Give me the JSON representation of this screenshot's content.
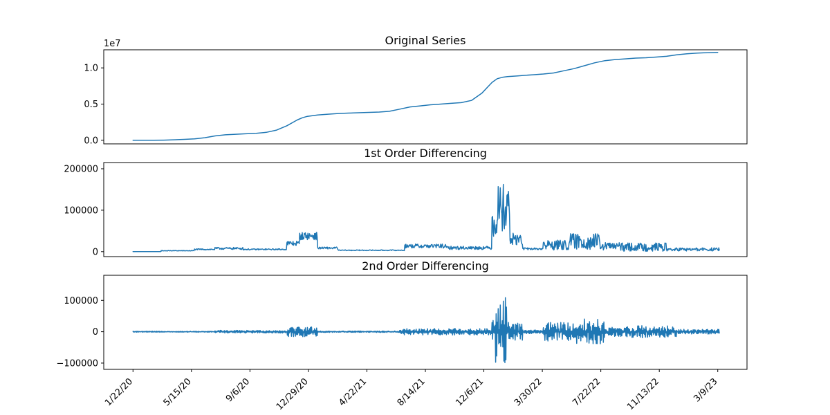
{
  "chart_data": [
    {
      "type": "line",
      "title": "Original Series",
      "scale_label": "1e7",
      "yticks": [
        0.0,
        0.5,
        1.0
      ],
      "ytick_labels": [
        "0.0",
        "0.5",
        "1.0"
      ],
      "ylim": [
        -0.05,
        1.25
      ],
      "show_xticks": false,
      "series": [
        {
          "color": "#1f77b4",
          "x": [
            0,
            20,
            40,
            60,
            80,
            100,
            120,
            140,
            160,
            180,
            200,
            220,
            240,
            260,
            280,
            300,
            320,
            330,
            340,
            350,
            360,
            380,
            400,
            420,
            440,
            460,
            480,
            500,
            520,
            540,
            560,
            580,
            600,
            620,
            640,
            660,
            680,
            700,
            710,
            720,
            730,
            740,
            750,
            760,
            780,
            800,
            820,
            840,
            860,
            880,
            900,
            920,
            940,
            960,
            980,
            1000,
            1020,
            1040,
            1060,
            1080,
            1100,
            1120,
            1140
          ],
          "y": [
            0.0,
            0.0,
            0.0,
            0.002,
            0.006,
            0.012,
            0.02,
            0.035,
            0.06,
            0.075,
            0.083,
            0.09,
            0.095,
            0.11,
            0.14,
            0.2,
            0.28,
            0.31,
            0.33,
            0.34,
            0.35,
            0.36,
            0.37,
            0.375,
            0.38,
            0.385,
            0.39,
            0.4,
            0.43,
            0.46,
            0.475,
            0.49,
            0.5,
            0.51,
            0.52,
            0.55,
            0.65,
            0.8,
            0.85,
            0.87,
            0.88,
            0.885,
            0.89,
            0.895,
            0.905,
            0.915,
            0.93,
            0.96,
            0.99,
            1.03,
            1.07,
            1.1,
            1.115,
            1.125,
            1.135,
            1.14,
            1.15,
            1.16,
            1.18,
            1.195,
            1.205,
            1.21,
            1.215
          ]
        }
      ],
      "xlim": [
        -57,
        1197
      ]
    },
    {
      "type": "line",
      "title": "1st Order Differencing",
      "yticks": [
        0,
        100000,
        200000
      ],
      "ytick_labels": [
        "0",
        "100000",
        "200000"
      ],
      "ylim": [
        -12000,
        215000
      ],
      "show_xticks": false,
      "xlim": [
        -57,
        1197
      ],
      "segments": [
        {
          "start": 0,
          "end": 55,
          "base": 0,
          "amp": 300
        },
        {
          "start": 55,
          "end": 120,
          "base": 2000,
          "amp": 1500
        },
        {
          "start": 120,
          "end": 160,
          "base": 5000,
          "amp": 3000
        },
        {
          "start": 160,
          "end": 215,
          "base": 7000,
          "amp": 5000
        },
        {
          "start": 215,
          "end": 300,
          "base": 5000,
          "amp": 3000
        },
        {
          "start": 300,
          "end": 325,
          "base": 18000,
          "amp": 12000
        },
        {
          "start": 325,
          "end": 360,
          "base": 35000,
          "amp": 18000
        },
        {
          "start": 360,
          "end": 400,
          "base": 8000,
          "amp": 5000
        },
        {
          "start": 400,
          "end": 530,
          "base": 3000,
          "amp": 2000
        },
        {
          "start": 530,
          "end": 610,
          "base": 12000,
          "amp": 10000
        },
        {
          "start": 610,
          "end": 700,
          "base": 8000,
          "amp": 8000
        },
        {
          "start": 700,
          "end": 710,
          "base": 60000,
          "amp": 80000
        },
        {
          "start": 710,
          "end": 735,
          "base": 90000,
          "amp": 115000
        },
        {
          "start": 735,
          "end": 760,
          "base": 25000,
          "amp": 30000
        },
        {
          "start": 760,
          "end": 800,
          "base": 6000,
          "amp": 5000
        },
        {
          "start": 800,
          "end": 850,
          "base": 12000,
          "amp": 25000
        },
        {
          "start": 850,
          "end": 910,
          "base": 18000,
          "amp": 40000
        },
        {
          "start": 910,
          "end": 950,
          "base": 10000,
          "amp": 20000
        },
        {
          "start": 950,
          "end": 1040,
          "base": 8000,
          "amp": 20000
        },
        {
          "start": 1040,
          "end": 1144,
          "base": 4000,
          "amp": 8000
        }
      ]
    },
    {
      "type": "line",
      "title": "2nd Order Differencing",
      "yticks": [
        -100000,
        0,
        100000
      ],
      "ytick_labels": [
        "−100000",
        "0",
        "100000"
      ],
      "ylim": [
        -120000,
        180000
      ],
      "show_xticks": true,
      "xlim": [
        -57,
        1197
      ],
      "xticks": [
        0,
        114,
        228,
        342,
        456,
        570,
        684,
        798,
        912,
        1026,
        1140
      ],
      "xtick_labels": [
        "1/22/20",
        "5/15/20",
        "9/6/20",
        "12/29/20",
        "4/22/21",
        "8/14/21",
        "12/6/21",
        "3/30/22",
        "7/22/22",
        "11/13/22",
        "3/9/23"
      ],
      "segments": [
        {
          "start": 0,
          "end": 160,
          "base": 0,
          "amp": 2000
        },
        {
          "start": 160,
          "end": 300,
          "base": 0,
          "amp": 6000
        },
        {
          "start": 300,
          "end": 360,
          "base": 0,
          "amp": 22000
        },
        {
          "start": 360,
          "end": 520,
          "base": 0,
          "amp": 3000
        },
        {
          "start": 520,
          "end": 700,
          "base": 0,
          "amp": 14000
        },
        {
          "start": 700,
          "end": 705,
          "base": 0,
          "amp": 50000
        },
        {
          "start": 705,
          "end": 730,
          "base": 0,
          "amp": 150000
        },
        {
          "start": 730,
          "end": 760,
          "base": 0,
          "amp": 40000
        },
        {
          "start": 760,
          "end": 800,
          "base": 0,
          "amp": 8000
        },
        {
          "start": 800,
          "end": 860,
          "base": 0,
          "amp": 40000
        },
        {
          "start": 860,
          "end": 920,
          "base": 0,
          "amp": 55000
        },
        {
          "start": 920,
          "end": 960,
          "base": 0,
          "amp": 20000
        },
        {
          "start": 960,
          "end": 1060,
          "base": 0,
          "amp": 26000
        },
        {
          "start": 1060,
          "end": 1144,
          "base": 0,
          "amp": 10000
        }
      ]
    }
  ]
}
